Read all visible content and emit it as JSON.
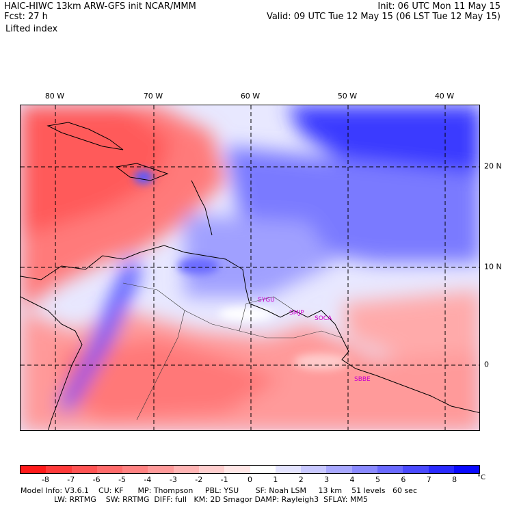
{
  "header": {
    "line1_left": "HAIC-HIWC 13km ARW-GFS init    NCAR/MMM",
    "line2_left": "Fcst:    27 h",
    "line1_right": "Init: 06 UTC Mon 11 May 15",
    "line2_right": "Valid: 09 UTC Tue 12 May 15 (06 LST Tue 12 May 15)",
    "field": "Lifted index"
  },
  "map": {
    "lon_labels": [
      "80 W",
      "70 W",
      "60 W",
      "50 W",
      "40 W"
    ],
    "lat_labels": [
      "20 N",
      "10 N",
      "0"
    ],
    "stations": [
      "SYGU",
      "SMJP",
      "SOCA",
      "SBBE"
    ]
  },
  "colorbar": {
    "ticks": [
      "-8",
      "-7",
      "-6",
      "-5",
      "-4",
      "-3",
      "-2",
      "-1",
      "0",
      "1",
      "2",
      "3",
      "4",
      "5",
      "6",
      "7",
      "8"
    ],
    "unit": "°C",
    "colors": [
      "#ff1a1a",
      "#ff3a3a",
      "#ff5454",
      "#ff6b6b",
      "#ff8282",
      "#ff9a9a",
      "#ffb4b4",
      "#ffcece",
      "#ffe6e6",
      "#ffffff",
      "#e4e4ff",
      "#c8c8ff",
      "#a8a8ff",
      "#8a8aff",
      "#6a6aff",
      "#4a4aff",
      "#2a2aff",
      "#0a0aff"
    ]
  },
  "footer": {
    "line1": "Model Info: V3.6.1    CU: KF      MP: Thompson     PBL: YSU       SF: Noah LSM     13 km    51 levels   60 sec",
    "line2": "              LW: RRTMG    SW: RRTMG  DIFF: full   KM: 2D Smagor DAMP: Rayleigh3  SFLAY: MM5"
  }
}
